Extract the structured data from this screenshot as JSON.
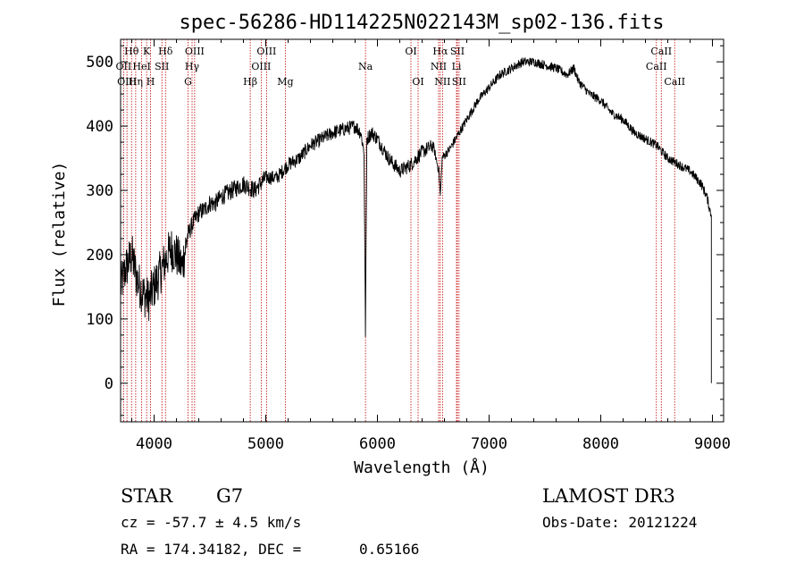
{
  "chart_data": {
    "type": "line",
    "title": "spec-56286-HD114225N022143M_sp02-136.fits",
    "xlabel": "Wavelength (Å)",
    "ylabel": "Flux (relative)",
    "xlim": [
      3700,
      9100
    ],
    "ylim": [
      -60,
      535
    ],
    "x_ticks": [
      4000,
      5000,
      6000,
      7000,
      8000,
      9000
    ],
    "y_ticks": [
      0,
      100,
      200,
      300,
      400,
      500
    ],
    "series": [
      {
        "name": "flux",
        "x": [
          3700,
          3750,
          3800,
          3850,
          3900,
          3950,
          4000,
          4050,
          4100,
          4150,
          4200,
          4250,
          4300,
          4350,
          4400,
          4450,
          4500,
          4550,
          4600,
          4700,
          4800,
          4900,
          5000,
          5100,
          5200,
          5300,
          5400,
          5500,
          5600,
          5700,
          5800,
          5850,
          5880,
          5893,
          5905,
          5950,
          6000,
          6100,
          6200,
          6300,
          6400,
          6500,
          6550,
          6563,
          6580,
          6650,
          6700,
          6800,
          6900,
          7000,
          7100,
          7200,
          7300,
          7400,
          7500,
          7600,
          7700,
          7760,
          7800,
          7900,
          8000,
          8100,
          8200,
          8300,
          8400,
          8500,
          8600,
          8700,
          8800,
          8900,
          8950,
          8990
        ],
        "y": [
          150,
          180,
          200,
          160,
          140,
          130,
          150,
          170,
          190,
          210,
          200,
          180,
          230,
          250,
          265,
          270,
          280,
          280,
          290,
          300,
          310,
          300,
          320,
          320,
          340,
          350,
          370,
          380,
          390,
          395,
          400,
          390,
          360,
          80,
          380,
          390,
          380,
          350,
          330,
          340,
          360,
          370,
          330,
          290,
          350,
          365,
          380,
          410,
          440,
          460,
          480,
          490,
          500,
          500,
          495,
          490,
          480,
          490,
          470,
          450,
          440,
          420,
          410,
          390,
          380,
          370,
          350,
          340,
          330,
          310,
          290,
          260
        ]
      }
    ],
    "line_markers": [
      {
        "label": "Hθ",
        "x": 3798,
        "row": 1
      },
      {
        "label": "OII",
        "x": 3727,
        "row": 2
      },
      {
        "label": "OIII",
        "x": 3757,
        "row": 3
      },
      {
        "label": "K",
        "x": 3933,
        "row": 1
      },
      {
        "label": "HeI",
        "x": 3889,
        "row": 2
      },
      {
        "label": "Hη",
        "x": 3835,
        "row": 3
      },
      {
        "label": "Hδ",
        "x": 4102,
        "row": 1
      },
      {
        "label": "SII",
        "x": 4070,
        "row": 2
      },
      {
        "label": "H",
        "x": 3968,
        "row": 3
      },
      {
        "label": "OIII",
        "x": 4363,
        "row": 1
      },
      {
        "label": "Hγ",
        "x": 4340,
        "row": 2
      },
      {
        "label": "G",
        "x": 4304,
        "row": 3
      },
      {
        "label": "OIII",
        "x": 5007,
        "row": 1
      },
      {
        "label": "OIII",
        "x": 4959,
        "row": 2
      },
      {
        "label": "Hβ",
        "x": 4861,
        "row": 3
      },
      {
        "label": "Mg",
        "x": 5175,
        "row": 3
      },
      {
        "label": "Na",
        "x": 5893,
        "row": 2
      },
      {
        "label": "OI",
        "x": 6300,
        "row": 1
      },
      {
        "label": "OI",
        "x": 6364,
        "row": 3
      },
      {
        "label": "Hα",
        "x": 6563,
        "row": 1
      },
      {
        "label": "SII",
        "x": 6716,
        "row": 1
      },
      {
        "label": "NII",
        "x": 6548,
        "row": 2
      },
      {
        "label": "Li",
        "x": 6708,
        "row": 2
      },
      {
        "label": "NII",
        "x": 6583,
        "row": 3
      },
      {
        "label": "SII",
        "x": 6731,
        "row": 3
      },
      {
        "label": "CaII",
        "x": 8542,
        "row": 1
      },
      {
        "label": "CaII",
        "x": 8498,
        "row": 2
      },
      {
        "label": "CaII",
        "x": 8662,
        "row": 3
      }
    ],
    "marker_color": "#c00000",
    "line_color": "#000000"
  },
  "info": {
    "object_class": "STAR",
    "subclass": "G7",
    "survey": "LAMOST DR3",
    "redshift": "cz = -57.7 ± 4.5 km/s",
    "obs_date": "Obs-Date: 20121224",
    "coords_ra": "RA = 174.34182, DEC =",
    "coords_dec": "0.65166"
  }
}
